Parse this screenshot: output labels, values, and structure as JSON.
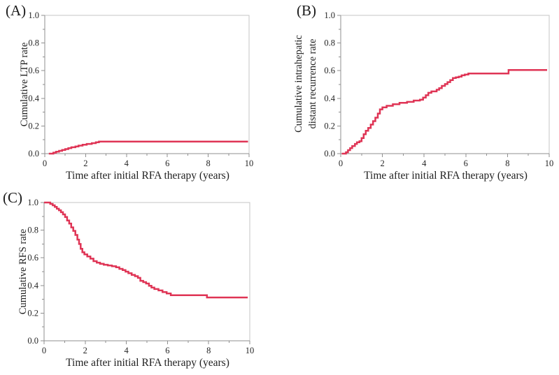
{
  "style": {
    "background": "#ffffff",
    "curve_color": "#df3455",
    "frame_light": "#c6c6c6",
    "axis_color": "#8f8f8f",
    "text_color": "#262626"
  },
  "chart_data": [
    {
      "type": "line",
      "variant": "kaplan-meier-step-curve",
      "panel": "(A)",
      "ylabel": "Cumulative LTP rate",
      "ylabel_lines": [
        "Cumulative LTP rate"
      ],
      "xlabel": "Time after initial RFA therapy (years)",
      "xlim": [
        0,
        10
      ],
      "ylim": [
        0.0,
        1.0
      ],
      "xticks": [
        0,
        2,
        4,
        6,
        8,
        10
      ],
      "xticks_minor": [
        1,
        3,
        5,
        7,
        9
      ],
      "yticks": [
        0.0,
        0.2,
        0.4,
        0.6,
        0.8,
        1.0
      ],
      "yticks_minor": [
        0.1,
        0.3,
        0.5,
        0.7,
        0.9
      ],
      "grid": false,
      "legend": "none",
      "series": [
        {
          "name": "Cumulative LTP rate",
          "color": "#df3455",
          "step_points": [
            [
              0.2,
              0
            ],
            [
              0.42,
              0.007
            ],
            [
              0.55,
              0.014
            ],
            [
              0.7,
              0.02
            ],
            [
              0.85,
              0.027
            ],
            [
              1.0,
              0.033
            ],
            [
              1.15,
              0.04
            ],
            [
              1.3,
              0.046
            ],
            [
              1.5,
              0.052
            ],
            [
              1.65,
              0.058
            ],
            [
              1.85,
              0.064
            ],
            [
              2.05,
              0.07
            ],
            [
              2.3,
              0.076
            ],
            [
              2.5,
              0.082
            ],
            [
              2.65,
              0.087
            ],
            [
              9.95,
              0.087
            ]
          ]
        }
      ]
    },
    {
      "type": "line",
      "variant": "kaplan-meier-step-curve",
      "panel": "(B)",
      "ylabel": "Cumulative intrahepatic distant recurrence rate",
      "ylabel_lines": [
        "Cumulative intrahepatic",
        "distant recurrence rate"
      ],
      "xlabel": "Time after initial RFA therapy (years)",
      "xlim": [
        0,
        10
      ],
      "ylim": [
        0.0,
        1.0
      ],
      "xticks": [
        0,
        2,
        4,
        6,
        8,
        10
      ],
      "xticks_minor": [
        1,
        3,
        5,
        7,
        9
      ],
      "yticks": [
        0.0,
        0.2,
        0.4,
        0.6,
        0.8,
        1.0
      ],
      "yticks_minor": [
        0.1,
        0.3,
        0.5,
        0.7,
        0.9
      ],
      "grid": false,
      "legend": "none",
      "series": [
        {
          "name": "Cumulative intrahepatic distant recurrence rate",
          "color": "#df3455",
          "step_points": [
            [
              0.05,
              0
            ],
            [
              0.25,
              0.01
            ],
            [
              0.35,
              0.025
            ],
            [
              0.45,
              0.04
            ],
            [
              0.55,
              0.055
            ],
            [
              0.68,
              0.07
            ],
            [
              0.78,
              0.082
            ],
            [
              0.9,
              0.09
            ],
            [
              1.0,
              0.112
            ],
            [
              1.1,
              0.14
            ],
            [
              1.2,
              0.165
            ],
            [
              1.32,
              0.186
            ],
            [
              1.44,
              0.21
            ],
            [
              1.55,
              0.235
            ],
            [
              1.66,
              0.26
            ],
            [
              1.78,
              0.29
            ],
            [
              1.88,
              0.32
            ],
            [
              2.0,
              0.335
            ],
            [
              2.2,
              0.346
            ],
            [
              2.5,
              0.357
            ],
            [
              2.82,
              0.367
            ],
            [
              3.18,
              0.374
            ],
            [
              3.5,
              0.384
            ],
            [
              3.8,
              0.39
            ],
            [
              3.95,
              0.405
            ],
            [
              4.08,
              0.422
            ],
            [
              4.2,
              0.44
            ],
            [
              4.35,
              0.45
            ],
            [
              4.6,
              0.462
            ],
            [
              4.72,
              0.473
            ],
            [
              4.85,
              0.49
            ],
            [
              5.0,
              0.503
            ],
            [
              5.12,
              0.517
            ],
            [
              5.25,
              0.532
            ],
            [
              5.38,
              0.547
            ],
            [
              5.52,
              0.552
            ],
            [
              5.66,
              0.557
            ],
            [
              5.8,
              0.566
            ],
            [
              5.95,
              0.572
            ],
            [
              6.12,
              0.58
            ],
            [
              8.05,
              0.605
            ],
            [
              9.9,
              0.605
            ]
          ]
        }
      ]
    },
    {
      "type": "line",
      "variant": "kaplan-meier-step-curve",
      "panel": "(C)",
      "ylabel": "Cumulative RFS rate",
      "ylabel_lines": [
        "Cumulative RFS rate"
      ],
      "xlabel": "Time after initial RFA therapy (years)",
      "xlim": [
        0,
        10
      ],
      "ylim": [
        0.0,
        1.0
      ],
      "xticks": [
        0,
        2,
        4,
        6,
        8,
        10
      ],
      "xticks_minor": [
        1,
        3,
        5,
        7,
        9
      ],
      "yticks": [
        0.0,
        0.2,
        0.4,
        0.6,
        0.8,
        1.0
      ],
      "yticks_minor": [
        0.1,
        0.3,
        0.5,
        0.7,
        0.9
      ],
      "grid": false,
      "legend": "none",
      "series": [
        {
          "name": "Cumulative RFS rate",
          "color": "#df3455",
          "step_points": [
            [
              0.0,
              1.0
            ],
            [
              0.3,
              0.99
            ],
            [
              0.42,
              0.98
            ],
            [
              0.52,
              0.968
            ],
            [
              0.62,
              0.955
            ],
            [
              0.72,
              0.944
            ],
            [
              0.82,
              0.93
            ],
            [
              0.92,
              0.914
            ],
            [
              1.02,
              0.895
            ],
            [
              1.12,
              0.87
            ],
            [
              1.22,
              0.848
            ],
            [
              1.32,
              0.82
            ],
            [
              1.42,
              0.795
            ],
            [
              1.52,
              0.765
            ],
            [
              1.62,
              0.732
            ],
            [
              1.7,
              0.7
            ],
            [
              1.78,
              0.665
            ],
            [
              1.86,
              0.64
            ],
            [
              1.96,
              0.625
            ],
            [
              2.1,
              0.61
            ],
            [
              2.25,
              0.594
            ],
            [
              2.4,
              0.576
            ],
            [
              2.56,
              0.565
            ],
            [
              2.72,
              0.557
            ],
            [
              2.9,
              0.55
            ],
            [
              3.1,
              0.545
            ],
            [
              3.3,
              0.539
            ],
            [
              3.5,
              0.532
            ],
            [
              3.66,
              0.52
            ],
            [
              3.82,
              0.511
            ],
            [
              3.96,
              0.5
            ],
            [
              4.1,
              0.489
            ],
            [
              4.26,
              0.477
            ],
            [
              4.42,
              0.467
            ],
            [
              4.56,
              0.455
            ],
            [
              4.68,
              0.434
            ],
            [
              4.82,
              0.424
            ],
            [
              4.96,
              0.414
            ],
            [
              5.1,
              0.398
            ],
            [
              5.22,
              0.385
            ],
            [
              5.36,
              0.374
            ],
            [
              5.56,
              0.364
            ],
            [
              5.76,
              0.352
            ],
            [
              5.96,
              0.342
            ],
            [
              6.16,
              0.33
            ],
            [
              7.92,
              0.313
            ],
            [
              9.9,
              0.313
            ]
          ]
        }
      ]
    }
  ]
}
